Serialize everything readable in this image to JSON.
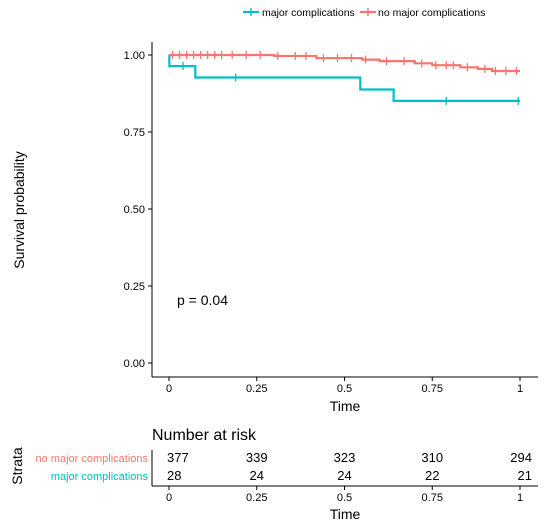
{
  "chart_data": [
    {
      "type": "line",
      "subtype": "kaplan-meier",
      "title": "",
      "xlabel": "Time",
      "ylabel": "Survival probability",
      "xlim": [
        0,
        1
      ],
      "ylim": [
        0,
        1
      ],
      "x_ticks": [
        "0",
        "0.25",
        "0.5",
        "0.75",
        "1"
      ],
      "y_ticks": [
        "0.00",
        "0.25",
        "0.50",
        "0.75",
        "1.00"
      ],
      "grid": false,
      "legend_position": "top",
      "annotation": "p = 0.04",
      "series": [
        {
          "name": "major complications",
          "color": "#00BFC4",
          "steps": [
            [
              0,
              1.0
            ],
            [
              0.001,
              0.964
            ],
            [
              0.075,
              0.927
            ],
            [
              0.545,
              0.888
            ],
            [
              0.64,
              0.851
            ],
            [
              1.0,
              0.851
            ]
          ],
          "censor": [
            [
              0.04,
              0.964
            ],
            [
              0.19,
              0.927
            ],
            [
              0.79,
              0.851
            ],
            [
              0.995,
              0.851
            ]
          ]
        },
        {
          "name": "no major complications",
          "color": "#F8766D",
          "steps": [
            [
              0,
              1.0
            ],
            [
              0.3,
              0.997
            ],
            [
              0.42,
              0.99
            ],
            [
              0.55,
              0.985
            ],
            [
              0.6,
              0.98
            ],
            [
              0.7,
              0.973
            ],
            [
              0.75,
              0.967
            ],
            [
              0.83,
              0.96
            ],
            [
              0.88,
              0.955
            ],
            [
              0.92,
              0.948
            ],
            [
              1.0,
              0.948
            ]
          ],
          "censor": [
            0.01,
            0.03,
            0.05,
            0.07,
            0.09,
            0.11,
            0.13,
            0.15,
            0.18,
            0.22,
            0.26,
            0.31,
            0.36,
            0.39,
            0.44,
            0.48,
            0.52,
            0.56,
            0.62,
            0.67,
            0.72,
            0.76,
            0.79,
            0.81,
            0.85,
            0.9,
            0.93,
            0.96,
            0.99
          ]
        }
      ]
    },
    {
      "type": "table",
      "title": "Number at risk",
      "strata_label": "Strata",
      "xlabel": "Time",
      "x_ticks": [
        "0",
        "0.25",
        "0.5",
        "0.75",
        "1"
      ],
      "rows": [
        {
          "name": "no major complications",
          "color": "#F8766D",
          "values": [
            "377",
            "339",
            "323",
            "310",
            "294"
          ]
        },
        {
          "name": "major complications",
          "color": "#00BFC4",
          "values": [
            "28",
            "24",
            "24",
            "22",
            "21"
          ]
        }
      ]
    }
  ]
}
